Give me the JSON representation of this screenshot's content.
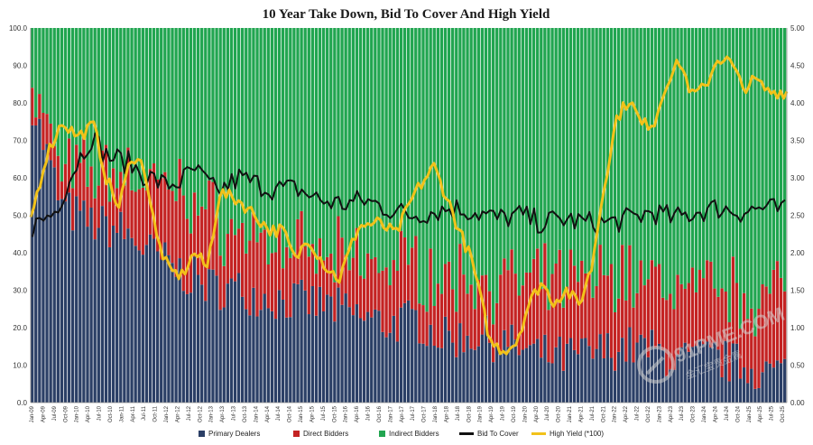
{
  "chart_data": {
    "type": "bar",
    "title": "10 Year Take Down, Bid To Cover And High Yield",
    "stacked": true,
    "left_axis": {
      "range": [
        0,
        100
      ],
      "ticks": [
        "0.0",
        "10.0",
        "20.0",
        "30.0",
        "40.0",
        "50.0",
        "60.0",
        "70.0",
        "80.0",
        "90.0",
        "100.0"
      ]
    },
    "right_axis": {
      "range": [
        0,
        5
      ],
      "ticks": [
        "0.00",
        "0.50",
        "1.00",
        "1.50",
        "2.00",
        "2.50",
        "3.00",
        "3.50",
        "4.00",
        "4.50",
        "5.00"
      ]
    },
    "x_tick_labels": [
      "Jan-09",
      "Apr-09",
      "Jul-09",
      "Oct-09",
      "Jan-10",
      "Apr-10",
      "Jul-10",
      "Oct-10",
      "Jan-11",
      "Apr-11",
      "Jul-11",
      "Oct-11",
      "Jan-12",
      "Apr-12",
      "Jul-12",
      "Oct-12",
      "Jan-13",
      "Apr-13",
      "Jul-13",
      "Oct-13",
      "Jan-14",
      "Apr-14",
      "Jul-14",
      "Oct-14",
      "Jan-15",
      "Apr-15",
      "Jul-15",
      "Oct-15",
      "Jan-16",
      "Apr-16",
      "Jul-16",
      "Oct-16",
      "Jan-17",
      "Apr-17",
      "Jul-17",
      "Oct-17",
      "Jan-18",
      "Apr-18",
      "Jul-18",
      "Oct-18",
      "Jan-19",
      "Apr-19",
      "Jul-19",
      "Oct-19",
      "Jan-20",
      "Apr-20",
      "Jul-20",
      "Oct-20",
      "Jan-21",
      "Apr-21",
      "Jul-21",
      "Oct-21",
      "Jan-22",
      "Apr-22",
      "Jul-22",
      "Oct-22",
      "Jan-23",
      "Apr-23",
      "Jul-23",
      "Oct-23",
      "Jan-24",
      "Apr-24",
      "Jul-24",
      "Oct-24",
      "Jan-25",
      "Apr-25",
      "Jul-25",
      "Oct-25"
    ],
    "legend_position": "bottom",
    "grid": false,
    "series": [
      {
        "name": "Primary Dealers",
        "axis": "left",
        "kind": "bar",
        "color": "#2b3f66",
        "anchors": [
          [
            0,
            80
          ],
          [
            8,
            52
          ],
          [
            16,
            48
          ],
          [
            24,
            46
          ],
          [
            32,
            40
          ],
          [
            40,
            35
          ],
          [
            48,
            31
          ],
          [
            56,
            30
          ],
          [
            64,
            28
          ],
          [
            72,
            27
          ],
          [
            80,
            26
          ],
          [
            88,
            23
          ],
          [
            96,
            21
          ],
          [
            104,
            22
          ],
          [
            112,
            17
          ],
          [
            120,
            18
          ],
          [
            128,
            16
          ],
          [
            136,
            13
          ],
          [
            144,
            12
          ],
          [
            152,
            13
          ],
          [
            160,
            15
          ],
          [
            168,
            14
          ],
          [
            176,
            11
          ],
          [
            184,
            12
          ],
          [
            192,
            10
          ],
          [
            200,
            8
          ],
          [
            204,
            8
          ]
        ]
      },
      {
        "name": "Direct Bidders",
        "axis": "left",
        "kind": "bar",
        "color": "#c42323",
        "anchors": [
          [
            0,
            5
          ],
          [
            8,
            10
          ],
          [
            16,
            13
          ],
          [
            24,
            16
          ],
          [
            32,
            18
          ],
          [
            40,
            22
          ],
          [
            48,
            19
          ],
          [
            56,
            15
          ],
          [
            64,
            15
          ],
          [
            72,
            13
          ],
          [
            80,
            12
          ],
          [
            88,
            15
          ],
          [
            96,
            16
          ],
          [
            104,
            15
          ],
          [
            112,
            15
          ],
          [
            120,
            16
          ],
          [
            128,
            16
          ],
          [
            136,
            18
          ],
          [
            144,
            20
          ],
          [
            152,
            20
          ],
          [
            160,
            20
          ],
          [
            168,
            18
          ],
          [
            176,
            20
          ],
          [
            184,
            18
          ],
          [
            192,
            19
          ],
          [
            200,
            20
          ],
          [
            204,
            22
          ]
        ]
      },
      {
        "name": "Indirect Bidders",
        "axis": "left",
        "kind": "bar",
        "color": "#21a550",
        "note": "remainder to 100"
      },
      {
        "name": "Bid To Cover",
        "axis": "right",
        "kind": "line",
        "color": "#111111",
        "anchors": [
          [
            0,
            2.35
          ],
          [
            6,
            2.55
          ],
          [
            12,
            3.2
          ],
          [
            16,
            3.55
          ],
          [
            20,
            3.3
          ],
          [
            26,
            3.2
          ],
          [
            30,
            3.05
          ],
          [
            36,
            2.9
          ],
          [
            40,
            2.95
          ],
          [
            44,
            3.1
          ],
          [
            50,
            2.8
          ],
          [
            56,
            3.0
          ],
          [
            62,
            2.9
          ],
          [
            66,
            2.85
          ],
          [
            72,
            2.85
          ],
          [
            78,
            2.7
          ],
          [
            84,
            2.65
          ],
          [
            90,
            2.7
          ],
          [
            96,
            2.6
          ],
          [
            102,
            2.5
          ],
          [
            108,
            2.55
          ],
          [
            114,
            2.6
          ],
          [
            120,
            2.55
          ],
          [
            126,
            2.45
          ],
          [
            132,
            2.5
          ],
          [
            138,
            2.4
          ],
          [
            144,
            2.45
          ],
          [
            150,
            2.4
          ],
          [
            156,
            2.4
          ],
          [
            162,
            2.45
          ],
          [
            168,
            2.55
          ],
          [
            174,
            2.45
          ],
          [
            180,
            2.55
          ],
          [
            186,
            2.6
          ],
          [
            192,
            2.55
          ],
          [
            198,
            2.6
          ],
          [
            204,
            2.55
          ]
        ]
      },
      {
        "name": "High Yield (*100)",
        "axis": "right",
        "kind": "line",
        "color": "#f2c21a",
        "anchors": [
          [
            0,
            2.45
          ],
          [
            5,
            3.3
          ],
          [
            10,
            3.75
          ],
          [
            15,
            3.55
          ],
          [
            20,
            3.7
          ],
          [
            24,
            3.0
          ],
          [
            28,
            2.6
          ],
          [
            32,
            3.3
          ],
          [
            36,
            3.15
          ],
          [
            40,
            2.2
          ],
          [
            44,
            1.75
          ],
          [
            48,
            1.7
          ],
          [
            52,
            2.0
          ],
          [
            56,
            1.8
          ],
          [
            60,
            2.8
          ],
          [
            66,
            2.7
          ],
          [
            70,
            2.55
          ],
          [
            76,
            2.3
          ],
          [
            80,
            2.3
          ],
          [
            84,
            1.9
          ],
          [
            88,
            2.2
          ],
          [
            94,
            1.8
          ],
          [
            98,
            1.65
          ],
          [
            104,
            2.35
          ],
          [
            110,
            2.4
          ],
          [
            116,
            2.25
          ],
          [
            122,
            2.8
          ],
          [
            128,
            3.15
          ],
          [
            132,
            2.75
          ],
          [
            136,
            2.3
          ],
          [
            140,
            1.9
          ],
          [
            146,
            0.8
          ],
          [
            150,
            0.7
          ],
          [
            154,
            0.8
          ],
          [
            158,
            1.3
          ],
          [
            162,
            1.6
          ],
          [
            166,
            1.35
          ],
          [
            170,
            1.5
          ],
          [
            174,
            1.3
          ],
          [
            178,
            1.8
          ],
          [
            182,
            2.9
          ],
          [
            186,
            3.8
          ],
          [
            190,
            4.05
          ],
          [
            194,
            3.7
          ],
          [
            198,
            3.75
          ],
          [
            202,
            4.3
          ],
          [
            206,
            4.55
          ],
          [
            210,
            4.1
          ],
          [
            214,
            4.2
          ],
          [
            218,
            4.6
          ],
          [
            222,
            4.55
          ],
          [
            226,
            4.2
          ],
          [
            230,
            4.3
          ],
          [
            234,
            4.15
          ],
          [
            240,
            4.15
          ]
        ]
      }
    ]
  },
  "watermark": {
    "text": "91PME.COM",
    "subtext": "金汇宝贵金属"
  }
}
